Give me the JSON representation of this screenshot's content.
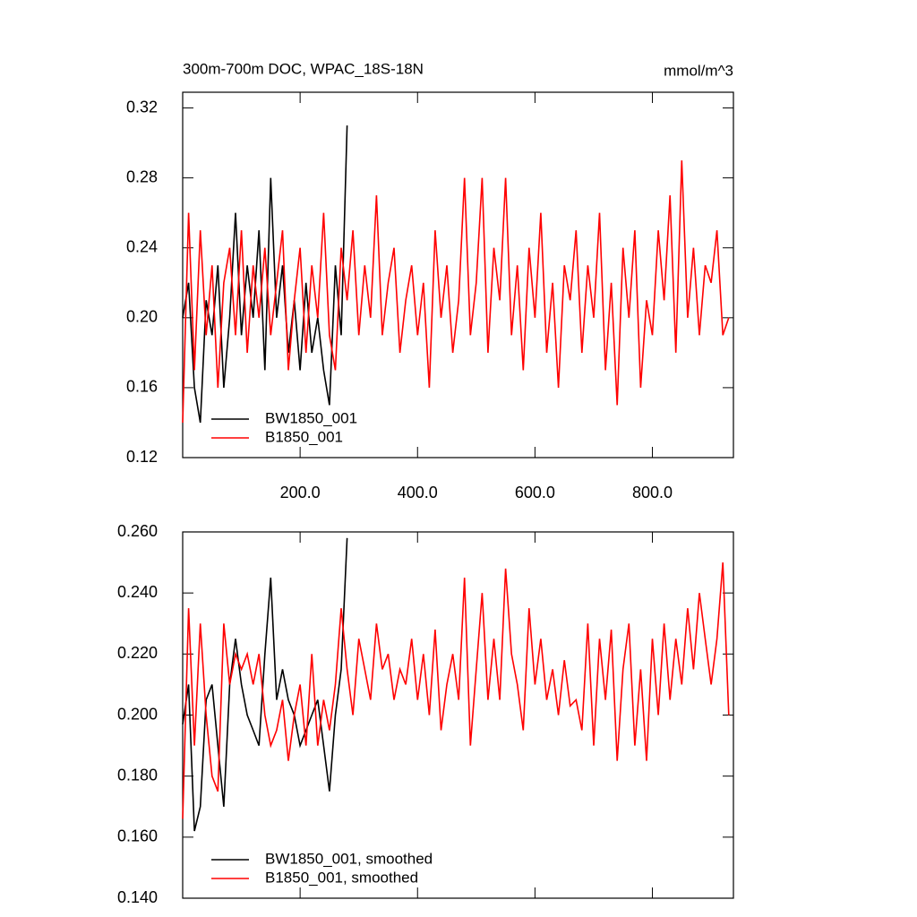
{
  "chart_data": [
    {
      "type": "line",
      "title": "300m-700m DOC, WPAC_18S-18N",
      "units": "mmol/m^3",
      "xlim": [
        0,
        938
      ],
      "ylim": [
        0.12,
        0.329
      ],
      "xticks": [
        {
          "value": 200,
          "label": "200.0"
        },
        {
          "value": 400,
          "label": "400.0"
        },
        {
          "value": 600,
          "label": "600.0"
        },
        {
          "value": 800,
          "label": "800.0"
        }
      ],
      "yticks": [
        0.12,
        0.16,
        {
          "value": 0.2,
          "label": "0.20"
        },
        0.24,
        0.28,
        0.32
      ],
      "legend": "lower left",
      "series": [
        {
          "name": "BW1850_001",
          "color": "#000000",
          "x": [
            0,
            10,
            20,
            30,
            40,
            50,
            60,
            70,
            80,
            90,
            100,
            110,
            120,
            130,
            140,
            150,
            160,
            170,
            180,
            190,
            200,
            210,
            220,
            230,
            240,
            250,
            260,
            270,
            280
          ],
          "values": [
            0.2,
            0.22,
            0.16,
            0.14,
            0.21,
            0.19,
            0.23,
            0.16,
            0.2,
            0.26,
            0.19,
            0.23,
            0.2,
            0.25,
            0.17,
            0.28,
            0.2,
            0.23,
            0.18,
            0.21,
            0.17,
            0.22,
            0.18,
            0.2,
            0.17,
            0.15,
            0.23,
            0.19,
            0.31
          ]
        },
        {
          "name": "B1850_001",
          "color": "#ff0000",
          "x": [
            0,
            10,
            20,
            30,
            40,
            50,
            60,
            70,
            80,
            90,
            100,
            110,
            120,
            130,
            140,
            150,
            160,
            170,
            180,
            190,
            200,
            210,
            220,
            230,
            240,
            250,
            260,
            270,
            280,
            290,
            300,
            310,
            320,
            330,
            340,
            350,
            360,
            370,
            380,
            390,
            400,
            410,
            420,
            430,
            440,
            450,
            460,
            470,
            480,
            490,
            500,
            510,
            520,
            530,
            540,
            550,
            560,
            570,
            580,
            590,
            600,
            610,
            620,
            630,
            640,
            650,
            660,
            670,
            680,
            690,
            700,
            710,
            720,
            730,
            740,
            750,
            760,
            770,
            780,
            790,
            800,
            810,
            820,
            830,
            840,
            850,
            860,
            870,
            880,
            890,
            900,
            910,
            920,
            930
          ],
          "values": [
            0.14,
            0.26,
            0.17,
            0.25,
            0.19,
            0.23,
            0.16,
            0.22,
            0.24,
            0.19,
            0.25,
            0.18,
            0.23,
            0.2,
            0.24,
            0.19,
            0.22,
            0.25,
            0.17,
            0.21,
            0.24,
            0.18,
            0.23,
            0.2,
            0.26,
            0.19,
            0.17,
            0.24,
            0.21,
            0.25,
            0.19,
            0.23,
            0.2,
            0.27,
            0.19,
            0.22,
            0.24,
            0.18,
            0.21,
            0.23,
            0.19,
            0.22,
            0.16,
            0.25,
            0.2,
            0.23,
            0.18,
            0.21,
            0.28,
            0.19,
            0.22,
            0.28,
            0.18,
            0.24,
            0.21,
            0.28,
            0.19,
            0.23,
            0.17,
            0.24,
            0.2,
            0.26,
            0.18,
            0.22,
            0.16,
            0.23,
            0.21,
            0.25,
            0.18,
            0.23,
            0.2,
            0.26,
            0.17,
            0.22,
            0.15,
            0.24,
            0.2,
            0.25,
            0.16,
            0.21,
            0.19,
            0.25,
            0.21,
            0.27,
            0.18,
            0.29,
            0.2,
            0.24,
            0.19,
            0.23,
            0.22,
            0.25,
            0.19,
            0.2
          ]
        }
      ]
    },
    {
      "type": "line",
      "xlim": [
        0,
        938
      ],
      "ylim": [
        0.14,
        0.26
      ],
      "yticks": [
        {
          "value": 0.14,
          "label": "0.140"
        },
        {
          "value": 0.16,
          "label": "0.160"
        },
        {
          "value": 0.18,
          "label": "0.180"
        },
        {
          "value": 0.2,
          "label": "0.200"
        },
        {
          "value": 0.22,
          "label": "0.220"
        },
        {
          "value": 0.24,
          "label": "0.240"
        },
        {
          "value": 0.26,
          "label": "0.260"
        }
      ],
      "legend": "lower left",
      "series": [
        {
          "name": "BW1850_001, smoothed",
          "color": "#000000",
          "x": [
            0,
            10,
            20,
            30,
            40,
            50,
            60,
            70,
            80,
            90,
            100,
            110,
            120,
            130,
            140,
            150,
            160,
            170,
            180,
            190,
            200,
            210,
            220,
            230,
            240,
            250,
            260,
            270,
            280
          ],
          "values": [
            0.197,
            0.21,
            0.162,
            0.17,
            0.205,
            0.21,
            0.19,
            0.17,
            0.21,
            0.225,
            0.21,
            0.2,
            0.195,
            0.19,
            0.22,
            0.245,
            0.205,
            0.215,
            0.205,
            0.2,
            0.19,
            0.195,
            0.2,
            0.205,
            0.19,
            0.175,
            0.2,
            0.215,
            0.258
          ]
        },
        {
          "name": "B1850_001, smoothed",
          "color": "#ff0000",
          "x": [
            0,
            10,
            20,
            30,
            40,
            50,
            60,
            70,
            80,
            90,
            100,
            110,
            120,
            130,
            140,
            150,
            160,
            170,
            180,
            190,
            200,
            210,
            220,
            230,
            240,
            250,
            260,
            270,
            280,
            290,
            300,
            310,
            320,
            330,
            340,
            350,
            360,
            370,
            380,
            390,
            400,
            410,
            420,
            430,
            440,
            450,
            460,
            470,
            480,
            490,
            500,
            510,
            520,
            530,
            540,
            550,
            560,
            570,
            580,
            590,
            600,
            610,
            620,
            630,
            640,
            650,
            660,
            670,
            680,
            690,
            700,
            710,
            720,
            730,
            740,
            750,
            760,
            770,
            780,
            790,
            800,
            810,
            820,
            830,
            840,
            850,
            860,
            870,
            880,
            890,
            900,
            910,
            920,
            930
          ],
          "values": [
            0.166,
            0.235,
            0.19,
            0.23,
            0.2,
            0.18,
            0.175,
            0.23,
            0.21,
            0.22,
            0.215,
            0.22,
            0.21,
            0.22,
            0.2,
            0.19,
            0.195,
            0.205,
            0.185,
            0.2,
            0.21,
            0.19,
            0.22,
            0.19,
            0.205,
            0.195,
            0.21,
            0.235,
            0.215,
            0.2,
            0.225,
            0.215,
            0.205,
            0.23,
            0.215,
            0.22,
            0.205,
            0.215,
            0.21,
            0.225,
            0.205,
            0.22,
            0.2,
            0.228,
            0.195,
            0.21,
            0.22,
            0.205,
            0.245,
            0.19,
            0.215,
            0.24,
            0.205,
            0.225,
            0.205,
            0.248,
            0.22,
            0.21,
            0.195,
            0.235,
            0.21,
            0.225,
            0.205,
            0.215,
            0.2,
            0.218,
            0.203,
            0.205,
            0.195,
            0.23,
            0.19,
            0.225,
            0.205,
            0.228,
            0.185,
            0.215,
            0.23,
            0.19,
            0.215,
            0.185,
            0.225,
            0.2,
            0.23,
            0.205,
            0.225,
            0.21,
            0.235,
            0.215,
            0.24,
            0.225,
            0.21,
            0.225,
            0.25,
            0.2
          ]
        }
      ]
    }
  ]
}
